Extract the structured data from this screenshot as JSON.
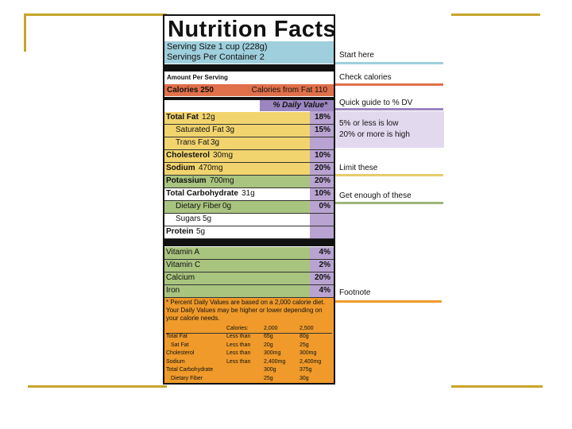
{
  "label": {
    "title": "Nutrition Facts",
    "serving_size": "Serving Size 1 cup (228g)",
    "servings_per_container": "Servings Per Container  2",
    "amount_per_serving": "Amount Per Serving",
    "calories": "Calories 250",
    "calories_from_fat": "Calories from Fat 110",
    "daily_value_header": "% Daily Value*",
    "nutrients": [
      {
        "name": "Total Fat",
        "amount": "12g",
        "dv": "18%",
        "color": "#f2d46e",
        "sub": [
          {
            "name": "Saturated Fat",
            "amount": "3g",
            "dv": "15%",
            "color": "#f2d46e"
          },
          {
            "name": "Trans Fat",
            "amount": "3g",
            "color": "#f2d46e"
          }
        ]
      },
      {
        "name": "Cholesterol",
        "amount": "30mg",
        "dv": "10%",
        "color": "#f2d46e"
      },
      {
        "name": "Sodium",
        "amount": "470mg",
        "dv": "20%",
        "color": "#f2d46e"
      },
      {
        "name": "Potassium",
        "amount": "700mg",
        "dv": "20%",
        "color": "#a9c47f"
      },
      {
        "name": "Total Carbohydrate",
        "amount": "31g",
        "dv": "10%",
        "color": "#ffffff",
        "sub": [
          {
            "name": "Dietary Fiber",
            "amount": "0g",
            "dv": "0%",
            "color": "#a9c47f"
          },
          {
            "name": "Sugars",
            "amount": "5g",
            "color": "#ffffff"
          }
        ]
      },
      {
        "name": "Protein",
        "amount": "5g",
        "color": "#ffffff"
      }
    ],
    "vitamins": [
      {
        "name": "Vitamin A",
        "dv": "4%"
      },
      {
        "name": "Vitamin C",
        "dv": "2%"
      },
      {
        "name": "Calcium",
        "dv": "20%"
      },
      {
        "name": "Iron",
        "dv": "4%"
      }
    ],
    "footnote": "* Percent Daily Values are based on a 2,000 calorie diet. Your Daily Values may be higher or lower depending on your calorie needs.",
    "table_header": {
      "label": "Calories:",
      "columns": [
        "2,000",
        "2,500"
      ]
    },
    "table_rows": [
      [
        "Total Fat",
        "Less than",
        "65g",
        "80g"
      ],
      [
        "Sat Fat",
        "Less than",
        "20g",
        "25g"
      ],
      [
        "Cholesterol",
        "Less than",
        "300mg",
        "300mg"
      ],
      [
        "Sodium",
        "Less than",
        "2,400mg",
        "2,400mg"
      ],
      [
        "Total Carbohydrate",
        "300g",
        "375g"
      ],
      [
        "Dietary Fiber",
        "25g",
        "30g"
      ]
    ]
  },
  "annotations": [
    {
      "text": "Start here",
      "color": "#9fcfdc"
    },
    {
      "text": "Check calories",
      "color": "#e0704a"
    },
    {
      "text": "Quick guide to % DV",
      "color": "#9b86c0"
    },
    {
      "text": "Limit these",
      "color": "#e8cc6a"
    },
    {
      "text": "Get enough of these",
      "color": "#9fb57c"
    },
    {
      "text": "Footnote",
      "color": "#ef9a2a"
    }
  ],
  "dv_guide": [
    "5% or less is low",
    "20% or more is high"
  ]
}
